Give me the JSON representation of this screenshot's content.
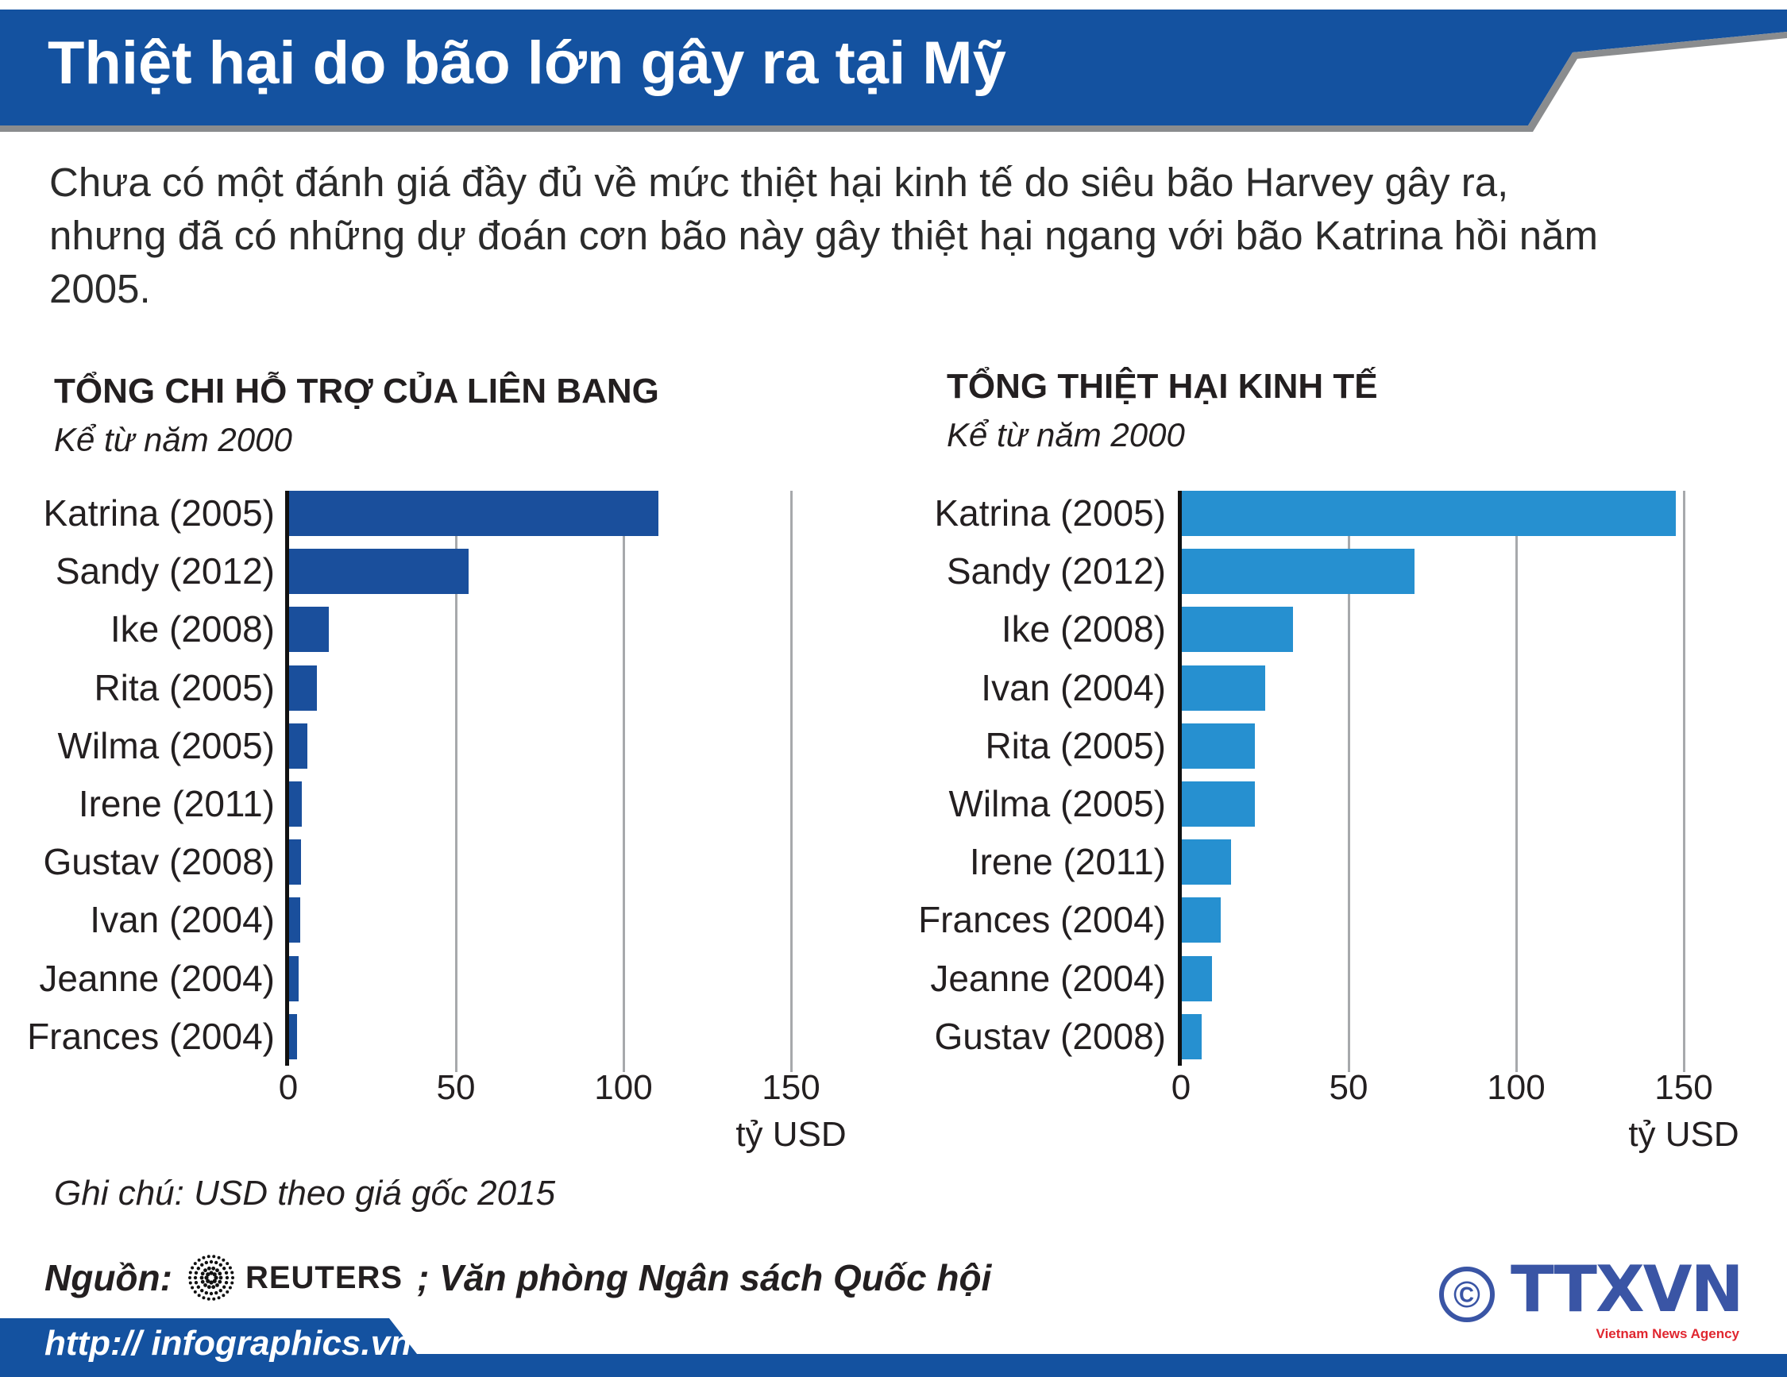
{
  "header": {
    "title": "Thiệt hại do bão lớn gây ra tại Mỹ"
  },
  "intro": "Chưa có một đánh giá đầy đủ về mức thiệt hại kinh tế do siêu bão Harvey gây ra, nhưng đã có những dự đoán cơn bão này gây thiệt hại ngang với bão Katrina hồi năm 2005.",
  "colors": {
    "header_blue": "#1452a0",
    "left_bar": "#1a4f9c",
    "right_bar": "#2690d0",
    "grid": "#a7a9ac"
  },
  "chart_data": [
    {
      "type": "bar",
      "orientation": "horizontal",
      "title": "TỔNG CHI HỖ TRỢ CỦA LIÊN BANG",
      "subtitle": "Kể từ năm 2000",
      "xlabel": "tỷ USD",
      "xlim": [
        0,
        150
      ],
      "ticks": [
        "0",
        "50",
        "100",
        "150"
      ],
      "grid": true,
      "categories": [
        "Katrina (2005)",
        "Sandy (2012)",
        "Ike (2008)",
        "Rita (2005)",
        "Wilma (2005)",
        "Irene (2011)",
        "Gustav (2008)",
        "Ivan (2004)",
        "Jeanne (2004)",
        "Frances (2004)"
      ],
      "values": [
        110.5,
        53.7,
        12.2,
        8.5,
        5.8,
        4.1,
        3.7,
        3.6,
        3.0,
        2.7
      ]
    },
    {
      "type": "bar",
      "orientation": "horizontal",
      "title": "TỔNG THIỆT HẠI KINH TẾ",
      "subtitle": "Kể từ năm 2000",
      "xlabel": "tỷ USD",
      "xlim": [
        0,
        150
      ],
      "ticks": [
        "0",
        "50",
        "100",
        "150"
      ],
      "grid": true,
      "categories": [
        "Katrina (2005)",
        "Sandy (2012)",
        "Ike (2008)",
        "Ivan (2004)",
        "Rita (2005)",
        "Wilma (2005)",
        "Irene (2011)",
        "Frances (2004)",
        "Jeanne (2004)",
        "Gustav (2008)"
      ],
      "values": [
        147.6,
        69.7,
        33.3,
        25.2,
        22.1,
        22.1,
        15.0,
        11.9,
        9.2,
        6.1
      ]
    }
  ],
  "footer": {
    "note": "Ghi chú: USD theo giá gốc 2015",
    "source_label": "Nguồn:",
    "source_reuters": "REUTERS",
    "source_rest": "; Văn phòng Ngân sách Quốc hội",
    "url": "http:// infographics.vn",
    "logo_text": "TTXVN",
    "logo_sub": "Vietnam News Agency",
    "copyright": "©"
  }
}
